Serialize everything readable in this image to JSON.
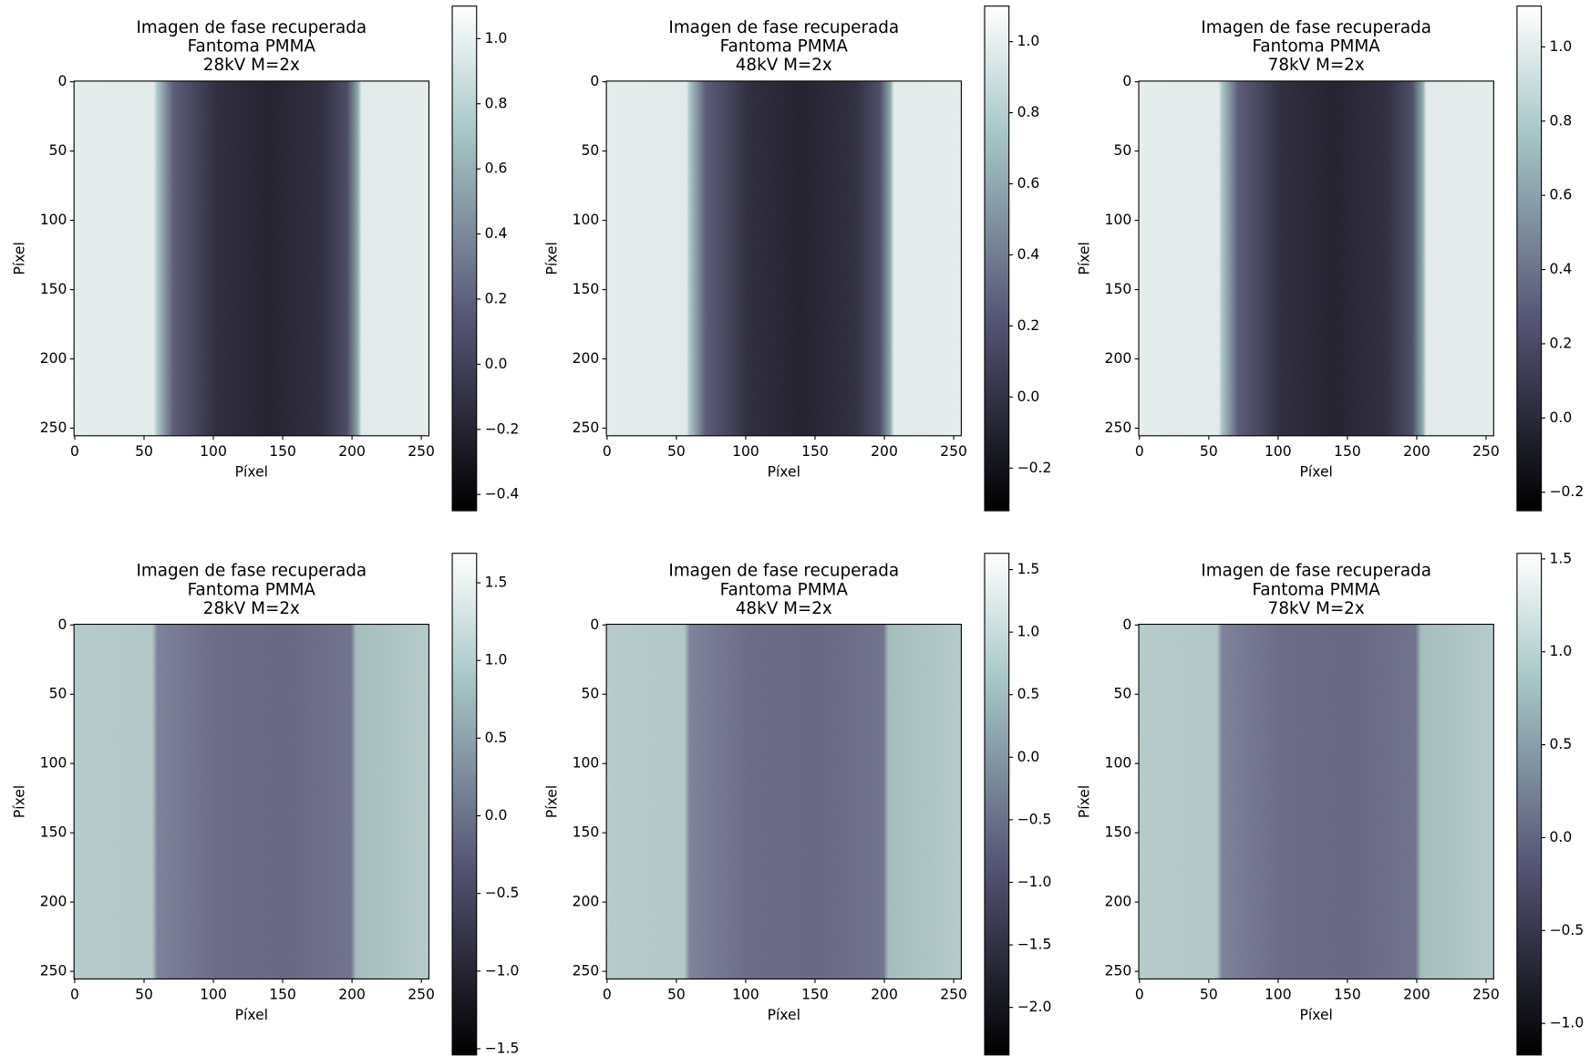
{
  "chart_data": [
    {
      "type": "image",
      "title": [
        "Imagen de fase recuperada",
        "Fantoma PMMA",
        "28kV M=2x"
      ],
      "xlabel": "Píxel",
      "ylabel": "Píxel",
      "xlim": [
        -0.5,
        255.5
      ],
      "ylim": [
        255.5,
        -0.5
      ],
      "xticks": [
        0,
        50,
        100,
        150,
        200,
        250
      ],
      "yticks": [
        0,
        50,
        100,
        150,
        200,
        250
      ],
      "colormap": "bone",
      "clim": [
        -0.45,
        1.1
      ],
      "cticks": [
        {
          "value": -0.4,
          "label": "−0.4"
        },
        {
          "value": -0.2,
          "label": "−0.2"
        },
        {
          "value": 0,
          "label": "0.0"
        },
        0.2,
        0.4,
        0.6,
        0.8,
        {
          "value": 1,
          "label": "1.0"
        }
      ]
    },
    {
      "type": "image",
      "title": [
        "Imagen de fase recuperada",
        "Fantoma PMMA",
        "48kV M=2x"
      ],
      "xlabel": "Píxel",
      "ylabel": "Píxel",
      "xlim": [
        -0.5,
        255.5
      ],
      "ylim": [
        255.5,
        -0.5
      ],
      "xticks": [
        0,
        50,
        100,
        150,
        200,
        250
      ],
      "yticks": [
        0,
        50,
        100,
        150,
        200,
        250
      ],
      "colormap": "bone",
      "clim": [
        -0.32,
        1.1
      ],
      "cticks": [
        {
          "value": -0.2,
          "label": "−0.2"
        },
        {
          "value": 0,
          "label": "0.0"
        },
        0.2,
        0.4,
        0.6,
        0.8,
        {
          "value": 1,
          "label": "1.0"
        }
      ]
    },
    {
      "type": "image",
      "title": [
        "Imagen de fase recuperada",
        "Fantoma PMMA",
        "78kV M=2x"
      ],
      "xlabel": "Píxel",
      "ylabel": "Píxel",
      "xlim": [
        -0.5,
        255.5
      ],
      "ylim": [
        255.5,
        -0.5
      ],
      "xticks": [
        0,
        50,
        100,
        150,
        200,
        250
      ],
      "yticks": [
        0,
        50,
        100,
        150,
        200,
        250
      ],
      "colormap": "bone",
      "clim": [
        -0.25,
        1.11
      ],
      "cticks": [
        {
          "value": -0.2,
          "label": "−0.2"
        },
        {
          "value": 0,
          "label": "0.0"
        },
        0.2,
        0.4,
        0.6,
        0.8,
        {
          "value": 1,
          "label": "1.0"
        }
      ]
    },
    {
      "type": "image",
      "title": [
        "Imagen de fase recuperada",
        "Fantoma PMMA",
        "28kV M=2x"
      ],
      "xlabel": "Píxel",
      "ylabel": "Píxel",
      "xlim": [
        -0.5,
        255.5
      ],
      "ylim": [
        255.5,
        -0.5
      ],
      "xticks": [
        0,
        50,
        100,
        150,
        200,
        250
      ],
      "yticks": [
        0,
        50,
        100,
        150,
        200,
        250
      ],
      "colormap": "bone",
      "clim": [
        -1.54,
        1.69
      ],
      "cticks": [
        {
          "value": -1.5,
          "label": "−1.5"
        },
        {
          "value": -1,
          "label": "−1.0"
        },
        {
          "value": -0.5,
          "label": "−0.5"
        },
        {
          "value": 0,
          "label": "0.0"
        },
        0.5,
        {
          "value": 1,
          "label": "1.0"
        },
        1.5
      ]
    },
    {
      "type": "image",
      "title": [
        "Imagen de fase recuperada",
        "Fantoma PMMA",
        "48kV M=2x"
      ],
      "xlabel": "Píxel",
      "ylabel": "Píxel",
      "xlim": [
        -0.5,
        255.5
      ],
      "ylim": [
        255.5,
        -0.5
      ],
      "xticks": [
        0,
        50,
        100,
        150,
        200,
        250
      ],
      "yticks": [
        0,
        50,
        100,
        150,
        200,
        250
      ],
      "colormap": "bone",
      "clim": [
        -2.38,
        1.63
      ],
      "cticks": [
        {
          "value": -2,
          "label": "−2.0"
        },
        {
          "value": -1.5,
          "label": "−1.5"
        },
        {
          "value": -1,
          "label": "−1.0"
        },
        {
          "value": -0.5,
          "label": "−0.5"
        },
        {
          "value": 0,
          "label": "0.0"
        },
        0.5,
        {
          "value": 1,
          "label": "1.0"
        },
        1.5
      ]
    },
    {
      "type": "image",
      "title": [
        "Imagen de fase recuperada",
        "Fantoma PMMA",
        "78kV M=2x"
      ],
      "xlabel": "Píxel",
      "ylabel": "Píxel",
      "xlim": [
        -0.5,
        255.5
      ],
      "ylim": [
        255.5,
        -0.5
      ],
      "xticks": [
        0,
        50,
        100,
        150,
        200,
        250
      ],
      "yticks": [
        0,
        50,
        100,
        150,
        200,
        250
      ],
      "colormap": "bone",
      "clim": [
        -1.17,
        1.53
      ],
      "cticks": [
        {
          "value": -1,
          "label": "−1.0"
        },
        {
          "value": -0.5,
          "label": "−0.5"
        },
        {
          "value": 0,
          "label": "0.0"
        },
        0.5,
        {
          "value": 1,
          "label": "1.0"
        },
        1.5
      ]
    }
  ]
}
